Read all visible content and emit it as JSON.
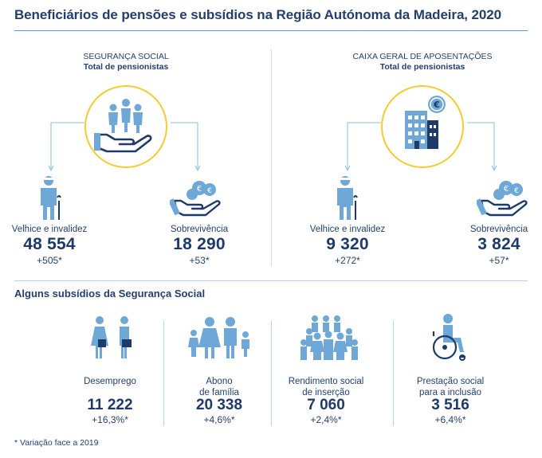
{
  "title": "Beneficiários de pensões e subsídios na Região Autónoma da Madeira, 2020",
  "colors": {
    "navy": "#233f6b",
    "icon_blue": "#6fa8d6",
    "yellow": "#f2cd32",
    "rule": "#b9d4ea"
  },
  "sections": [
    {
      "heading": "SEGURANÇA SOCIAL",
      "subheading": "Total de pensionistas",
      "center_icon": "family-hand-icon",
      "categories": [
        {
          "label": "Velhice e invalidez",
          "value": "48 554",
          "variation": "+505",
          "icon": "elderly-person-icon"
        },
        {
          "label": "Sobrevivência",
          "value": "18 290",
          "variation": "+53",
          "icon": "hand-coins-icon"
        }
      ]
    },
    {
      "heading": "CAIXA GERAL DE APOSENTAÇÕES",
      "subheading": "Total de pensionistas",
      "center_icon": "building-euro-icon",
      "categories": [
        {
          "label": "Velhice e invalidez",
          "value": "9 320",
          "variation": "+272",
          "icon": "elderly-person-icon"
        },
        {
          "label": "Sobrevivência",
          "value": "3 824",
          "variation": "+57",
          "icon": "hand-coins-icon"
        }
      ]
    }
  ],
  "subsidies_title": "Alguns subsídios da Segurança Social",
  "subsidies": [
    {
      "label_line1": "Desemprego",
      "label_line2": "",
      "value": "11 222",
      "variation": "+16,3%",
      "icon": "job-seekers-icon"
    },
    {
      "label_line1": "Abono",
      "label_line2": "de família",
      "value": "20 338",
      "variation": "+4,6%",
      "icon": "family-icon"
    },
    {
      "label_line1": "Rendimento social",
      "label_line2": "de inserção",
      "value": "7 060",
      "variation": "+2,4%",
      "icon": "group-people-icon"
    },
    {
      "label_line1": "Prestação social",
      "label_line2": "para a inclusão",
      "value": "3 516",
      "variation": "+6,4%",
      "icon": "wheelchair-icon"
    }
  ],
  "asterisk": "*",
  "footnote": "* Variação face a 2019"
}
